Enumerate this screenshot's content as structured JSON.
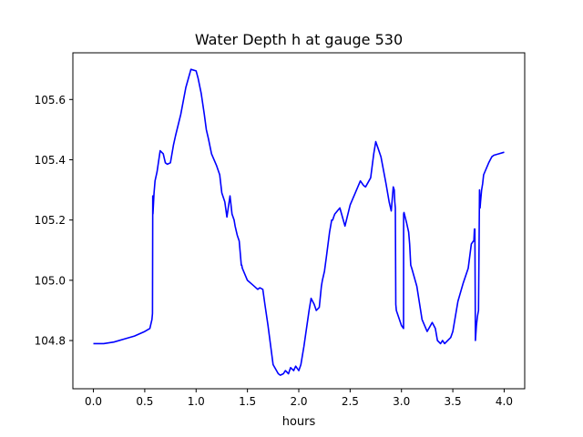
{
  "chart_data": {
    "type": "line",
    "title": "Water Depth h at gauge 530",
    "xlabel": "hours",
    "ylabel": "",
    "xlim": [
      -0.2,
      4.2
    ],
    "ylim": [
      104.64,
      105.755
    ],
    "xticks": [
      0.0,
      0.5,
      1.0,
      1.5,
      2.0,
      2.5,
      3.0,
      3.5,
      4.0
    ],
    "xtick_labels": [
      "0.0",
      "0.5",
      "1.0",
      "1.5",
      "2.0",
      "2.5",
      "3.0",
      "3.5",
      "4.0"
    ],
    "yticks": [
      104.8,
      105.0,
      105.2,
      105.4,
      105.6
    ],
    "ytick_labels": [
      "104.8",
      "105.0",
      "105.2",
      "105.4",
      "105.6"
    ],
    "grid": false,
    "series": [
      {
        "color": "#0000ff",
        "x": [
          0.0,
          0.1,
          0.2,
          0.3,
          0.4,
          0.5,
          0.55,
          0.57,
          0.575,
          0.578,
          0.58,
          0.59,
          0.6,
          0.62,
          0.65,
          0.68,
          0.7,
          0.72,
          0.75,
          0.78,
          0.8,
          0.85,
          0.9,
          0.95,
          1.0,
          1.02,
          1.05,
          1.08,
          1.1,
          1.12,
          1.15,
          1.2,
          1.23,
          1.25,
          1.28,
          1.3,
          1.33,
          1.35,
          1.37,
          1.38,
          1.4,
          1.42,
          1.44,
          1.445,
          1.45,
          1.5,
          1.55,
          1.6,
          1.62,
          1.65,
          1.67,
          1.7,
          1.75,
          1.8,
          1.82,
          1.85,
          1.87,
          1.9,
          1.92,
          1.95,
          1.97,
          2.0,
          2.02,
          2.05,
          2.1,
          2.12,
          2.15,
          2.17,
          2.2,
          2.22,
          2.23,
          2.25,
          2.27,
          2.3,
          2.32,
          2.33,
          2.34,
          2.35,
          2.4,
          2.45,
          2.5,
          2.55,
          2.6,
          2.63,
          2.65,
          2.7,
          2.73,
          2.75,
          2.77,
          2.8,
          2.85,
          2.88,
          2.9,
          2.92,
          2.93,
          2.935,
          2.94,
          2.945,
          2.95,
          3.0,
          3.02,
          3.021,
          3.025,
          3.05,
          3.07,
          3.08,
          3.09,
          3.1,
          3.15,
          3.2,
          3.25,
          3.3,
          3.33,
          3.35,
          3.38,
          3.4,
          3.42,
          3.45,
          3.48,
          3.5,
          3.55,
          3.6,
          3.65,
          3.68,
          3.7,
          3.705,
          3.71,
          3.715,
          3.72,
          3.73,
          3.74,
          3.75,
          3.76,
          3.765,
          3.77,
          3.78,
          3.79,
          3.8,
          3.85,
          3.88,
          3.9,
          3.95,
          4.0
        ],
        "y": [
          104.79,
          104.79,
          104.795,
          104.805,
          104.815,
          104.83,
          104.84,
          104.87,
          104.89,
          105.28,
          105.22,
          105.29,
          105.33,
          105.36,
          105.43,
          105.42,
          105.39,
          105.385,
          105.39,
          105.45,
          105.48,
          105.55,
          105.64,
          105.7,
          105.695,
          105.67,
          105.62,
          105.55,
          105.5,
          105.47,
          105.42,
          105.38,
          105.35,
          105.29,
          105.26,
          105.21,
          105.28,
          105.22,
          105.2,
          105.18,
          105.15,
          105.13,
          105.05,
          105.05,
          105.04,
          105.0,
          104.985,
          104.97,
          104.975,
          104.97,
          104.92,
          104.85,
          104.72,
          104.69,
          104.685,
          104.69,
          104.7,
          104.69,
          104.71,
          104.7,
          104.715,
          104.7,
          104.72,
          104.78,
          104.9,
          104.94,
          104.92,
          104.9,
          104.91,
          104.98,
          105.0,
          105.03,
          105.08,
          105.16,
          105.2,
          105.2,
          105.21,
          105.22,
          105.24,
          105.18,
          105.25,
          105.29,
          105.33,
          105.315,
          105.31,
          105.34,
          105.42,
          105.46,
          105.44,
          105.41,
          105.32,
          105.26,
          105.23,
          105.31,
          105.3,
          105.26,
          105.24,
          104.92,
          104.9,
          104.85,
          104.84,
          105.22,
          105.225,
          105.19,
          105.16,
          105.12,
          105.05,
          105.04,
          104.98,
          104.87,
          104.83,
          104.86,
          104.84,
          104.8,
          104.79,
          104.8,
          104.79,
          104.8,
          104.81,
          104.83,
          104.93,
          104.99,
          105.04,
          105.12,
          105.13,
          105.13,
          105.17,
          105.17,
          104.8,
          104.85,
          104.88,
          104.9,
          105.3,
          105.24,
          105.26,
          105.3,
          105.32,
          105.35,
          105.39,
          105.41,
          105.415,
          105.42,
          105.425
        ]
      }
    ]
  }
}
